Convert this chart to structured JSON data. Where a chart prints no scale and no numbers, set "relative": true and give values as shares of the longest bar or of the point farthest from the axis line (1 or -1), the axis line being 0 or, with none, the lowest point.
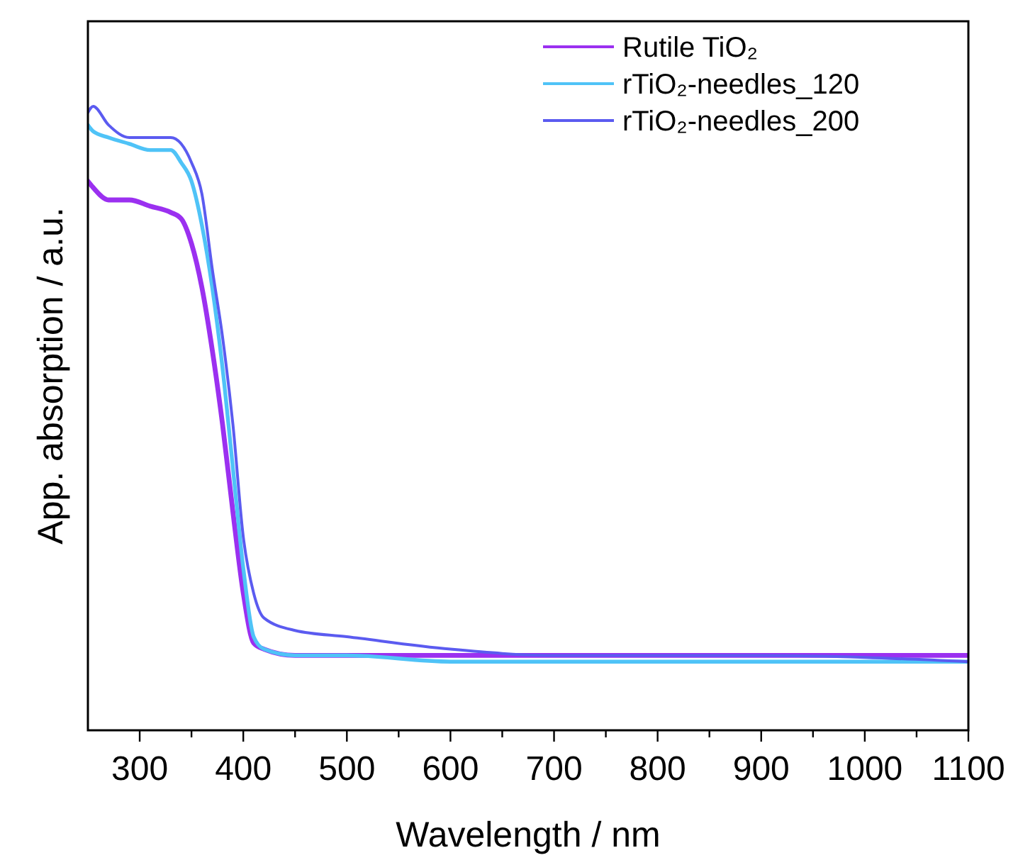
{
  "chart_data": {
    "type": "line",
    "relative": true,
    "xlabel": "Wavelength / nm",
    "ylabel": "App. absorption / a.u.",
    "x": [
      250,
      255,
      270,
      290,
      310,
      330,
      340,
      350,
      360,
      370,
      380,
      390,
      400,
      410,
      420,
      450,
      500,
      600,
      700,
      800,
      900,
      1100
    ],
    "xlim": [
      250,
      1100
    ],
    "xticks": [
      300,
      {
        "value": 350,
        "label": null
      },
      400,
      {
        "value": 450,
        "label": null
      },
      500,
      {
        "value": 550,
        "label": null
      },
      600,
      {
        "value": 650,
        "label": null
      },
      700,
      {
        "value": 750,
        "label": null
      },
      800,
      {
        "value": 850,
        "label": null
      },
      900,
      {
        "value": 950,
        "label": null
      },
      1000,
      {
        "value": 1050,
        "label": null
      },
      1100
    ],
    "legend": "top right",
    "grid": false,
    "line_style": "solid",
    "series": [
      {
        "name": "Rutile TiO₂",
        "color": "#9b30f0",
        "values": [
          0.88,
          0.87,
          0.85,
          0.85,
          0.84,
          0.83,
          0.82,
          0.78,
          0.71,
          0.61,
          0.49,
          0.35,
          0.22,
          0.14,
          0.13,
          0.12,
          0.12,
          0.12,
          0.12,
          0.12,
          0.12,
          0.12
        ]
      },
      {
        "name": "rTiO₂-needles_120",
        "color": "#4fc3f7",
        "values": [
          0.97,
          0.96,
          0.95,
          0.94,
          0.93,
          0.93,
          0.91,
          0.88,
          0.81,
          0.71,
          0.58,
          0.42,
          0.26,
          0.15,
          0.13,
          0.12,
          0.12,
          0.11,
          0.11,
          0.11,
          0.11,
          0.11
        ]
      },
      {
        "name": "rTiO₂-needles_200",
        "color": "#5b5bf0",
        "values": [
          0.99,
          1.0,
          0.97,
          0.95,
          0.95,
          0.95,
          0.94,
          0.91,
          0.86,
          0.74,
          0.63,
          0.49,
          0.31,
          0.22,
          0.18,
          0.16,
          0.15,
          0.13,
          0.12,
          0.12,
          0.12,
          0.11
        ]
      }
    ]
  }
}
